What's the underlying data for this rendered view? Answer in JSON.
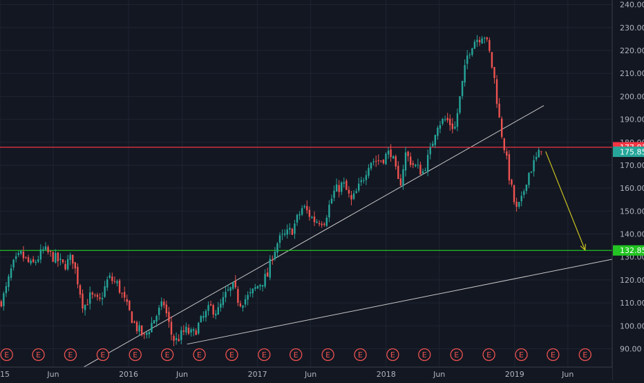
{
  "chart_data": {
    "type": "candlestick",
    "title": "",
    "ylim": [
      82,
      242
    ],
    "y_ticks": [
      90,
      100,
      110,
      120,
      130,
      140,
      150,
      160,
      170,
      180,
      190,
      200,
      210,
      220,
      230,
      240
    ],
    "y_tick_labels": [
      "90.00",
      "100.00",
      "110.00",
      "120.00",
      "130.00",
      "140.00",
      "150.00",
      "160.00",
      "170.00",
      "180.00",
      "190.00",
      "200.00",
      "210.00",
      "220.00",
      "230.00",
      "240.00"
    ],
    "x_range": [
      "2015-01-01",
      "2019-10-05"
    ],
    "x_ticks": [
      {
        "label": "2015",
        "date": "2015-01-01"
      },
      {
        "label": "Jun",
        "date": "2015-06-01"
      },
      {
        "label": "2016",
        "date": "2016-01-01"
      },
      {
        "label": "Jun",
        "date": "2016-06-01"
      },
      {
        "label": "2017",
        "date": "2017-01-01"
      },
      {
        "label": "Jun",
        "date": "2017-06-01"
      },
      {
        "label": "2018",
        "date": "2018-01-01"
      },
      {
        "label": "Jun",
        "date": "2018-06-01"
      },
      {
        "label": "2019",
        "date": "2019-01-01"
      },
      {
        "label": "Jun",
        "date": "2019-06-01"
      }
    ],
    "horizontal_levels": [
      {
        "value": 177.81,
        "label": "177.81",
        "color": "#f23645"
      },
      {
        "value": 132.85,
        "label": "132.85",
        "color": "#22c322"
      }
    ],
    "last_price": {
      "value": 175.85,
      "label": "175.85",
      "color": "#26a69a"
    },
    "trendlines": [
      {
        "from": [
          "2015-08-15",
          81
        ],
        "to": [
          "2019-03-25",
          196
        ],
        "color": "#c8c8c8"
      },
      {
        "from": [
          "2016-06-15",
          92
        ],
        "to": [
          "2019-10-05",
          129
        ],
        "color": "#c8c8c8"
      }
    ],
    "projection_arrow": {
      "from": [
        "2019-03-30",
        176
      ],
      "to": [
        "2019-07-20",
        133
      ],
      "color": "#c9c21f"
    },
    "earnings_label": "E",
    "earnings_dates": [
      "2015-01-20",
      "2015-04-20",
      "2015-07-20",
      "2015-10-20",
      "2016-01-20",
      "2016-04-20",
      "2016-07-20",
      "2016-10-20",
      "2017-01-20",
      "2017-04-20",
      "2017-07-20",
      "2017-10-20",
      "2018-01-20",
      "2018-04-20",
      "2018-07-20",
      "2018-10-20",
      "2019-01-20",
      "2019-04-20",
      "2019-07-20"
    ],
    "price_path": [
      [
        "2015-01-01",
        110
      ],
      [
        "2015-01-15",
        114
      ],
      [
        "2015-02-05",
        126
      ],
      [
        "2015-03-01",
        131
      ],
      [
        "2015-04-01",
        126
      ],
      [
        "2015-05-05",
        133
      ],
      [
        "2015-06-10",
        129
      ],
      [
        "2015-07-01",
        126
      ],
      [
        "2015-07-25",
        130
      ],
      [
        "2015-08-12",
        118
      ],
      [
        "2015-08-26",
        108
      ],
      [
        "2015-09-15",
        113
      ],
      [
        "2015-10-10",
        110
      ],
      [
        "2015-11-05",
        121
      ],
      [
        "2015-12-01",
        118
      ],
      [
        "2015-12-25",
        109
      ],
      [
        "2016-01-20",
        100
      ],
      [
        "2016-02-15",
        95
      ],
      [
        "2016-03-10",
        102
      ],
      [
        "2016-04-10",
        110
      ],
      [
        "2016-04-30",
        97
      ],
      [
        "2016-05-12",
        93
      ],
      [
        "2016-06-10",
        98
      ],
      [
        "2016-07-01",
        96
      ],
      [
        "2016-07-20",
        101
      ],
      [
        "2016-08-20",
        108
      ],
      [
        "2016-09-10",
        106
      ],
      [
        "2016-10-05",
        114
      ],
      [
        "2016-10-25",
        117
      ],
      [
        "2016-11-10",
        110
      ],
      [
        "2016-12-10",
        113
      ],
      [
        "2016-12-30",
        117
      ],
      [
        "2017-01-30",
        122
      ],
      [
        "2017-02-10",
        130
      ],
      [
        "2017-03-01",
        137
      ],
      [
        "2017-04-10",
        142
      ],
      [
        "2017-05-10",
        152
      ],
      [
        "2017-06-10",
        146
      ],
      [
        "2017-07-10",
        146
      ],
      [
        "2017-08-05",
        158
      ],
      [
        "2017-09-01",
        162
      ],
      [
        "2017-09-25",
        154
      ],
      [
        "2017-10-25",
        163
      ],
      [
        "2017-11-15",
        172
      ],
      [
        "2017-12-15",
        172
      ],
      [
        "2018-01-15",
        176
      ],
      [
        "2018-02-08",
        160
      ],
      [
        "2018-02-25",
        175
      ],
      [
        "2018-03-20",
        170
      ],
      [
        "2018-04-15",
        167
      ],
      [
        "2018-05-05",
        175
      ],
      [
        "2018-05-25",
        188
      ],
      [
        "2018-06-20",
        190
      ],
      [
        "2018-07-15",
        186
      ],
      [
        "2018-08-05",
        205
      ],
      [
        "2018-08-20",
        218
      ],
      [
        "2018-09-05",
        224
      ],
      [
        "2018-09-25",
        226
      ],
      [
        "2018-10-05",
        228
      ],
      [
        "2018-10-20",
        220
      ],
      [
        "2018-11-05",
        207
      ],
      [
        "2018-11-20",
        188
      ],
      [
        "2018-12-05",
        176
      ],
      [
        "2018-12-20",
        162
      ],
      [
        "2019-01-05",
        150
      ],
      [
        "2019-01-20",
        154
      ],
      [
        "2019-02-05",
        165
      ],
      [
        "2019-02-25",
        171
      ],
      [
        "2019-03-15",
        175.85
      ]
    ]
  }
}
